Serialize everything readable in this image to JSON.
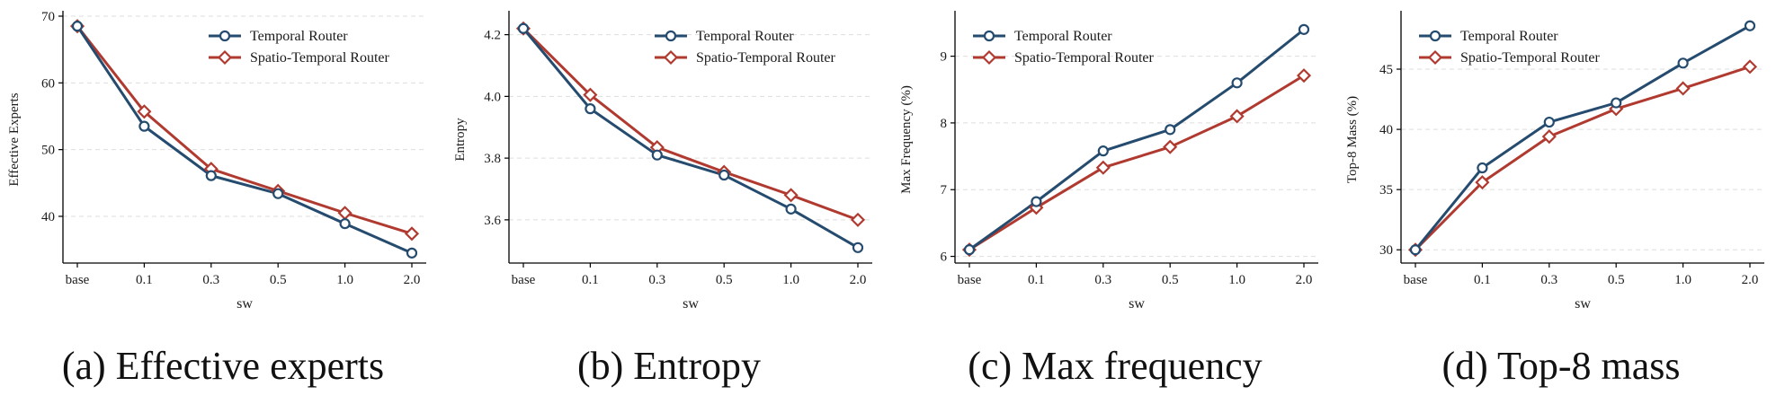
{
  "colors": {
    "temporal": "#254b6e",
    "spatio_temporal": "#b03a30",
    "grid": "#dddddd",
    "axis": "#000000"
  },
  "chart_data": [
    {
      "type": "line",
      "caption": "(a) Effective experts",
      "xlabel": "sw",
      "ylabel": "Effective Experts",
      "categories": [
        "base",
        "0.1",
        "0.3",
        "0.5",
        "1.0",
        "2.0"
      ],
      "ylim": [
        33,
        70
      ],
      "yticks": [
        40,
        50,
        60,
        70
      ],
      "legend": "top-right",
      "grid": true,
      "series": [
        {
          "name": "Temporal Router",
          "marker": "circle",
          "values": [
            68.5,
            53.5,
            46.1,
            43.4,
            38.9,
            34.5
          ]
        },
        {
          "name": "Spatio-Temporal Router",
          "marker": "diamond",
          "values": [
            68.5,
            55.7,
            47.1,
            43.8,
            40.5,
            37.4
          ]
        }
      ]
    },
    {
      "type": "line",
      "caption": "(b) Entropy",
      "xlabel": "sw",
      "ylabel": "Entropy",
      "categories": [
        "base",
        "0.1",
        "0.3",
        "0.5",
        "1.0",
        "2.0"
      ],
      "ylim": [
        3.46,
        4.26
      ],
      "yticks": [
        "3.6",
        "3.8",
        "4.0",
        "4.2"
      ],
      "legend": "top-right",
      "grid": true,
      "series": [
        {
          "name": "Temporal Router",
          "marker": "circle",
          "values": [
            4.22,
            3.96,
            3.81,
            3.745,
            3.635,
            3.51
          ]
        },
        {
          "name": "Spatio-Temporal Router",
          "marker": "diamond",
          "values": [
            4.22,
            4.005,
            3.835,
            3.755,
            3.68,
            3.6
          ]
        }
      ]
    },
    {
      "type": "line",
      "caption": "(c) Max frequency",
      "xlabel": "sw",
      "ylabel": "Max Frequency (%)",
      "categories": [
        "base",
        "0.1",
        "0.3",
        "0.5",
        "1.0",
        "2.0"
      ],
      "ylim": [
        5.9,
        9.6
      ],
      "yticks": [
        6,
        7,
        8,
        9
      ],
      "legend": "top-left",
      "grid": true,
      "series": [
        {
          "name": "Temporal Router",
          "marker": "circle",
          "values": [
            6.1,
            6.82,
            7.58,
            7.9,
            8.6,
            9.4
          ]
        },
        {
          "name": "Spatio-Temporal Router",
          "marker": "diamond",
          "values": [
            6.1,
            6.73,
            7.33,
            7.64,
            8.1,
            8.71
          ]
        }
      ]
    },
    {
      "type": "line",
      "caption": "(d) Top-8 mass",
      "xlabel": "sw",
      "ylabel": "Top-8 Mass (%)",
      "categories": [
        "base",
        "0.1",
        "0.3",
        "0.5",
        "1.0",
        "2.0"
      ],
      "ylim": [
        28.9,
        49.4
      ],
      "yticks": [
        30,
        35,
        40,
        45
      ],
      "legend": "top-left",
      "grid": true,
      "series": [
        {
          "name": "Temporal Router",
          "marker": "circle",
          "values": [
            30.0,
            36.8,
            40.6,
            42.2,
            45.5,
            48.6
          ]
        },
        {
          "name": "Spatio-Temporal Router",
          "marker": "diamond",
          "values": [
            30.0,
            35.6,
            39.4,
            41.7,
            43.4,
            45.2
          ]
        }
      ]
    }
  ]
}
